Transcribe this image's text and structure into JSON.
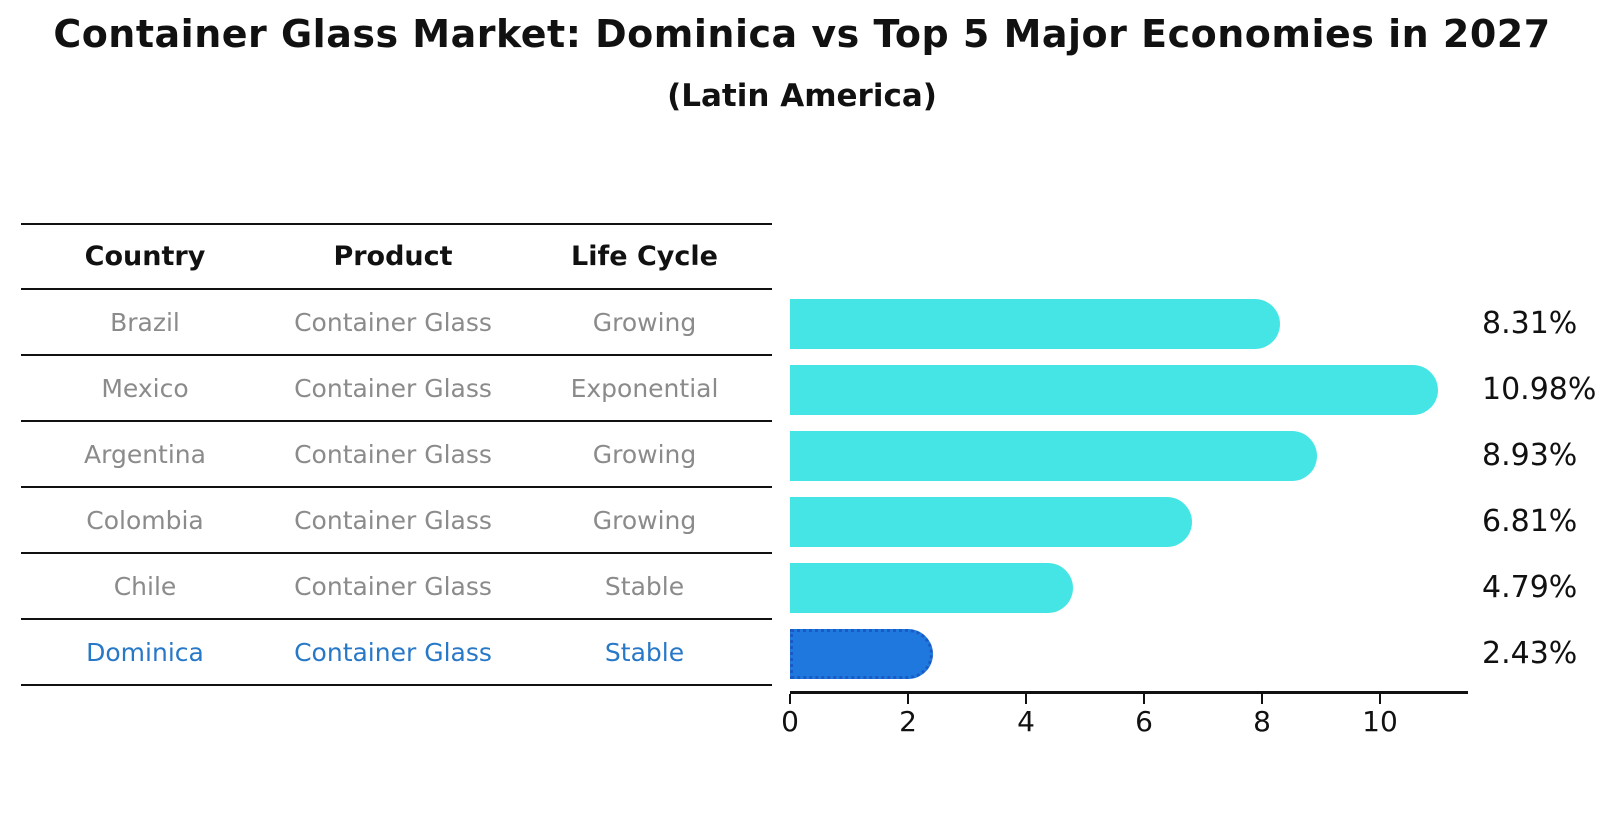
{
  "title": "Container Glass Market: Dominica vs Top 5 Major Economies in 2027",
  "subtitle": "(Latin America)",
  "table": {
    "headers": [
      "Country",
      "Product",
      "Life Cycle"
    ],
    "rows": [
      {
        "country": "Brazil",
        "product": "Container Glass",
        "life_cycle": "Growing",
        "highlight": false
      },
      {
        "country": "Mexico",
        "product": "Container Glass",
        "life_cycle": "Exponential",
        "highlight": false
      },
      {
        "country": "Argentina",
        "product": "Container Glass",
        "life_cycle": "Growing",
        "highlight": false
      },
      {
        "country": "Colombia",
        "product": "Container Glass",
        "life_cycle": "Growing",
        "highlight": false
      },
      {
        "country": "Chile",
        "product": "Container Glass",
        "life_cycle": "Stable",
        "highlight": false
      },
      {
        "country": "Dominica",
        "product": "Container Glass",
        "life_cycle": "Stable",
        "highlight": true
      }
    ]
  },
  "chart_data": {
    "type": "bar",
    "orientation": "horizontal",
    "title": "Container Glass Market: Dominica vs Top 5 Major Economies in 2027",
    "subtitle": "(Latin America)",
    "categories": [
      "Brazil",
      "Mexico",
      "Argentina",
      "Colombia",
      "Chile",
      "Dominica"
    ],
    "values": [
      8.31,
      10.98,
      8.93,
      6.81,
      4.79,
      2.43
    ],
    "value_labels": [
      "8.31%",
      "10.98%",
      "8.93%",
      "6.81%",
      "4.79%",
      "2.43%"
    ],
    "xticks": [
      0,
      2,
      4,
      6,
      8,
      10
    ],
    "xlim": [
      0,
      11.5
    ],
    "grid": false,
    "legend": "none",
    "highlight_index": 5
  },
  "colors": {
    "bar_color": "#46E5E5",
    "highlight_bar_color": "#1F78DE",
    "highlight_bar_border": "#1A5AC4",
    "highlight_text": "#2878C8",
    "row_text": "#8B8B8B",
    "header_text": "#111111"
  }
}
